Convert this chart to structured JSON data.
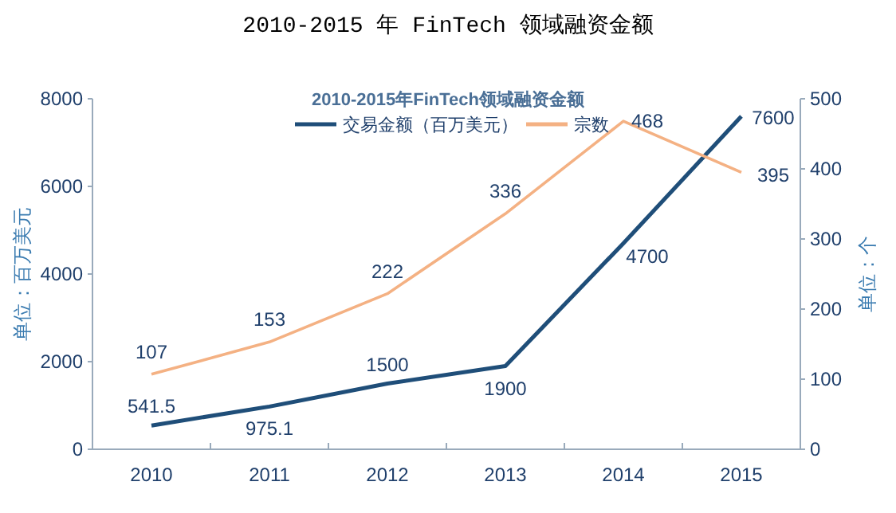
{
  "chart_data": {
    "type": "line",
    "title": "2010-2015 年 FinTech 领域融资金额",
    "subtitle": "2010-2015年FinTech领域融资金额",
    "ylabel": "单位：百万美元",
    "y2label": "单位：个",
    "categories": [
      "2010",
      "2011",
      "2012",
      "2013",
      "2014",
      "2015"
    ],
    "series": [
      {
        "name": "交易金额（百万美元）",
        "color": "#1f4e79",
        "values": [
          541.5,
          975.1,
          1500,
          1900,
          4700,
          7600
        ]
      },
      {
        "name": "宗数",
        "color": "#f4b183",
        "values": [
          107,
          153,
          222,
          336,
          468,
          395
        ],
        "axis": "y2"
      }
    ],
    "ylim": [
      0,
      8000
    ],
    "yticks": [
      0,
      2000,
      4000,
      6000,
      8000
    ],
    "y2lim": [
      0,
      500
    ],
    "y2ticks": [
      0,
      100,
      200,
      300,
      400,
      500
    ],
    "data_labels": true,
    "legend": "top",
    "grid": false
  }
}
